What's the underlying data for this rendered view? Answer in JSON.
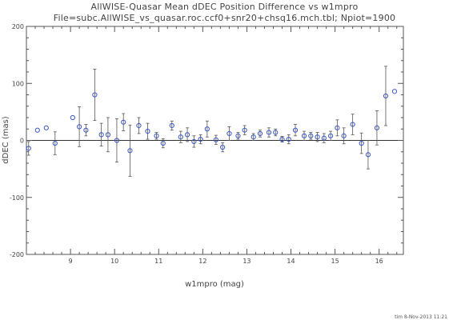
{
  "chart_data": {
    "type": "scatter",
    "title": "AllWISE-Quasar Mean dDEC Position Difference vs w1mpro",
    "subtitle": "File=subc.AllWISE_vs_quasar.roc.ccf0+snr20+chsq16.mch.tbl; Npiot=1900",
    "xlabel": "w1mpro (mag)",
    "ylabel": "dDEC (mas)",
    "xlim": [
      8.0,
      16.55
    ],
    "ylim": [
      -200,
      200
    ],
    "xticks": [
      9,
      10,
      11,
      12,
      13,
      14,
      15,
      16
    ],
    "yticks": [
      -200,
      -100,
      0,
      100,
      200
    ],
    "zero_line": true,
    "grid": false,
    "colors": {
      "marker": "#3a57c8",
      "errorbar": "#555555",
      "axis": "#555555"
    },
    "points": [
      {
        "x": 8.05,
        "y": -14,
        "err": 12
      },
      {
        "x": 8.25,
        "y": 18,
        "err": 0
      },
      {
        "x": 8.45,
        "y": 22,
        "err": 0
      },
      {
        "x": 8.65,
        "y": -5,
        "err": 20
      },
      {
        "x": 9.05,
        "y": 40,
        "err": 0
      },
      {
        "x": 9.2,
        "y": 24,
        "err": 35
      },
      {
        "x": 9.35,
        "y": 18,
        "err": 10
      },
      {
        "x": 9.55,
        "y": 80,
        "err": 45
      },
      {
        "x": 9.7,
        "y": 10,
        "err": 20
      },
      {
        "x": 9.85,
        "y": 10,
        "err": 30
      },
      {
        "x": 10.05,
        "y": 0,
        "err": 38
      },
      {
        "x": 10.2,
        "y": 32,
        "err": 15
      },
      {
        "x": 10.35,
        "y": -18,
        "err": 45
      },
      {
        "x": 10.55,
        "y": 26,
        "err": 14
      },
      {
        "x": 10.75,
        "y": 16,
        "err": 14
      },
      {
        "x": 10.95,
        "y": 8,
        "err": 6
      },
      {
        "x": 11.1,
        "y": -5,
        "err": 8
      },
      {
        "x": 11.3,
        "y": 26,
        "err": 8
      },
      {
        "x": 11.5,
        "y": 6,
        "err": 10
      },
      {
        "x": 11.65,
        "y": 10,
        "err": 12
      },
      {
        "x": 11.8,
        "y": -2,
        "err": 10
      },
      {
        "x": 11.95,
        "y": 2,
        "err": 8
      },
      {
        "x": 12.1,
        "y": 20,
        "err": 14
      },
      {
        "x": 12.3,
        "y": 1,
        "err": 8
      },
      {
        "x": 12.45,
        "y": -12,
        "err": 8
      },
      {
        "x": 12.6,
        "y": 12,
        "err": 12
      },
      {
        "x": 12.8,
        "y": 8,
        "err": 6
      },
      {
        "x": 12.95,
        "y": 18,
        "err": 8
      },
      {
        "x": 13.15,
        "y": 6,
        "err": 6
      },
      {
        "x": 13.3,
        "y": 12,
        "err": 6
      },
      {
        "x": 13.5,
        "y": 14,
        "err": 8
      },
      {
        "x": 13.65,
        "y": 14,
        "err": 6
      },
      {
        "x": 13.8,
        "y": 2,
        "err": 5
      },
      {
        "x": 13.95,
        "y": 2,
        "err": 8
      },
      {
        "x": 14.1,
        "y": 18,
        "err": 10
      },
      {
        "x": 14.3,
        "y": 8,
        "err": 8
      },
      {
        "x": 14.45,
        "y": 8,
        "err": 6
      },
      {
        "x": 14.6,
        "y": 6,
        "err": 8
      },
      {
        "x": 14.75,
        "y": 4,
        "err": 8
      },
      {
        "x": 14.9,
        "y": 8,
        "err": 8
      },
      {
        "x": 15.05,
        "y": 22,
        "err": 14
      },
      {
        "x": 15.2,
        "y": 8,
        "err": 14
      },
      {
        "x": 15.4,
        "y": 28,
        "err": 18
      },
      {
        "x": 15.6,
        "y": -5,
        "err": 18
      },
      {
        "x": 15.75,
        "y": -25,
        "err": 25
      },
      {
        "x": 15.95,
        "y": 22,
        "err": 30
      },
      {
        "x": 16.15,
        "y": 78,
        "err": 52
      },
      {
        "x": 16.35,
        "y": 86,
        "err": 0
      }
    ]
  },
  "footer": "tim 8-Nov-2013 11:21"
}
